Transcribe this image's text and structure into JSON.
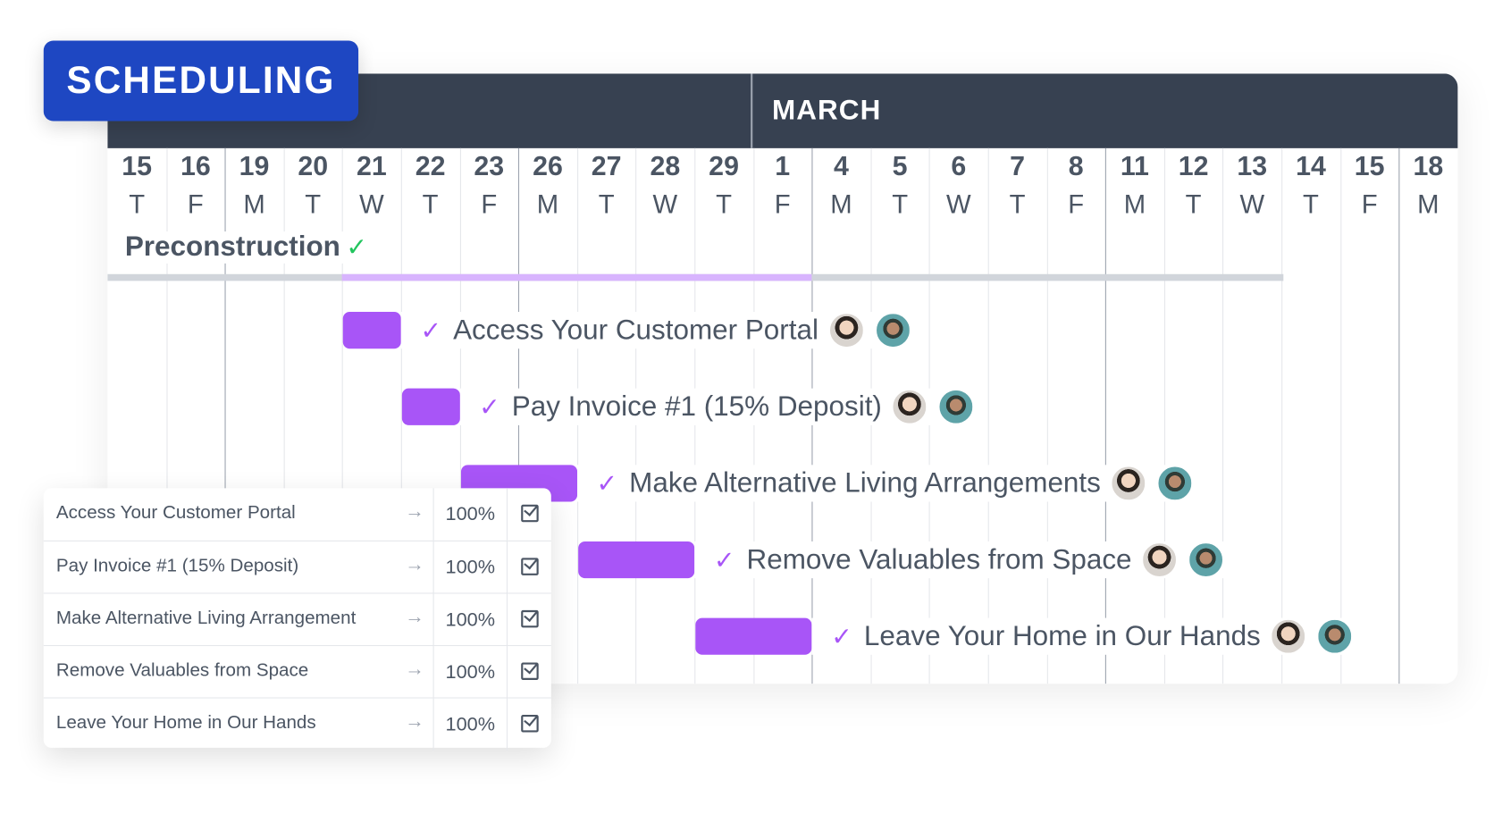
{
  "badge": "SCHEDULING",
  "header": {
    "month": "MARCH"
  },
  "days": [
    {
      "d": "15",
      "w": "T"
    },
    {
      "d": "16",
      "w": "F"
    },
    {
      "d": "19",
      "w": "M"
    },
    {
      "d": "20",
      "w": "T"
    },
    {
      "d": "21",
      "w": "W"
    },
    {
      "d": "22",
      "w": "T"
    },
    {
      "d": "23",
      "w": "F"
    },
    {
      "d": "26",
      "w": "M"
    },
    {
      "d": "27",
      "w": "T"
    },
    {
      "d": "28",
      "w": "W"
    },
    {
      "d": "29",
      "w": "T"
    },
    {
      "d": "1",
      "w": "F"
    },
    {
      "d": "4",
      "w": "M"
    },
    {
      "d": "5",
      "w": "T"
    },
    {
      "d": "6",
      "w": "W"
    },
    {
      "d": "7",
      "w": "T"
    },
    {
      "d": "8",
      "w": "F"
    },
    {
      "d": "11",
      "w": "M"
    },
    {
      "d": "12",
      "w": "T"
    },
    {
      "d": "13",
      "w": "W"
    },
    {
      "d": "14",
      "w": "T"
    },
    {
      "d": "15",
      "w": "F"
    },
    {
      "d": "18",
      "w": "M"
    }
  ],
  "phase": {
    "label": "Preconstruction",
    "check": "✓"
  },
  "tasks": [
    {
      "label": "Access Your Customer Portal",
      "check": "✓"
    },
    {
      "label": "Pay Invoice #1 (15% Deposit)",
      "check": "✓"
    },
    {
      "label": "Make Alternative Living Arrangements",
      "check": "✓"
    },
    {
      "label": "Remove Valuables from Space",
      "check": "✓"
    },
    {
      "label": "Leave Your Home in Our Hands",
      "check": "✓"
    }
  ],
  "table": {
    "rows": [
      {
        "name": "Access Your Customer Portal",
        "arrow": "→",
        "pct": "100%"
      },
      {
        "name": "Pay Invoice #1 (15% Deposit)",
        "arrow": "→",
        "pct": "100%"
      },
      {
        "name": "Make Alternative Living Arrangement",
        "arrow": "→",
        "pct": "100%"
      },
      {
        "name": "Remove Valuables from Space",
        "arrow": "→",
        "pct": "100%"
      },
      {
        "name": "Leave Your Home in Our Hands",
        "arrow": "→",
        "pct": "100%"
      }
    ]
  },
  "colors": {
    "badge": "#1e47c2",
    "header": "#374151",
    "task": "#a855f7",
    "phase_progress": "#d8b4fe",
    "phase_check": "#22c55e"
  }
}
